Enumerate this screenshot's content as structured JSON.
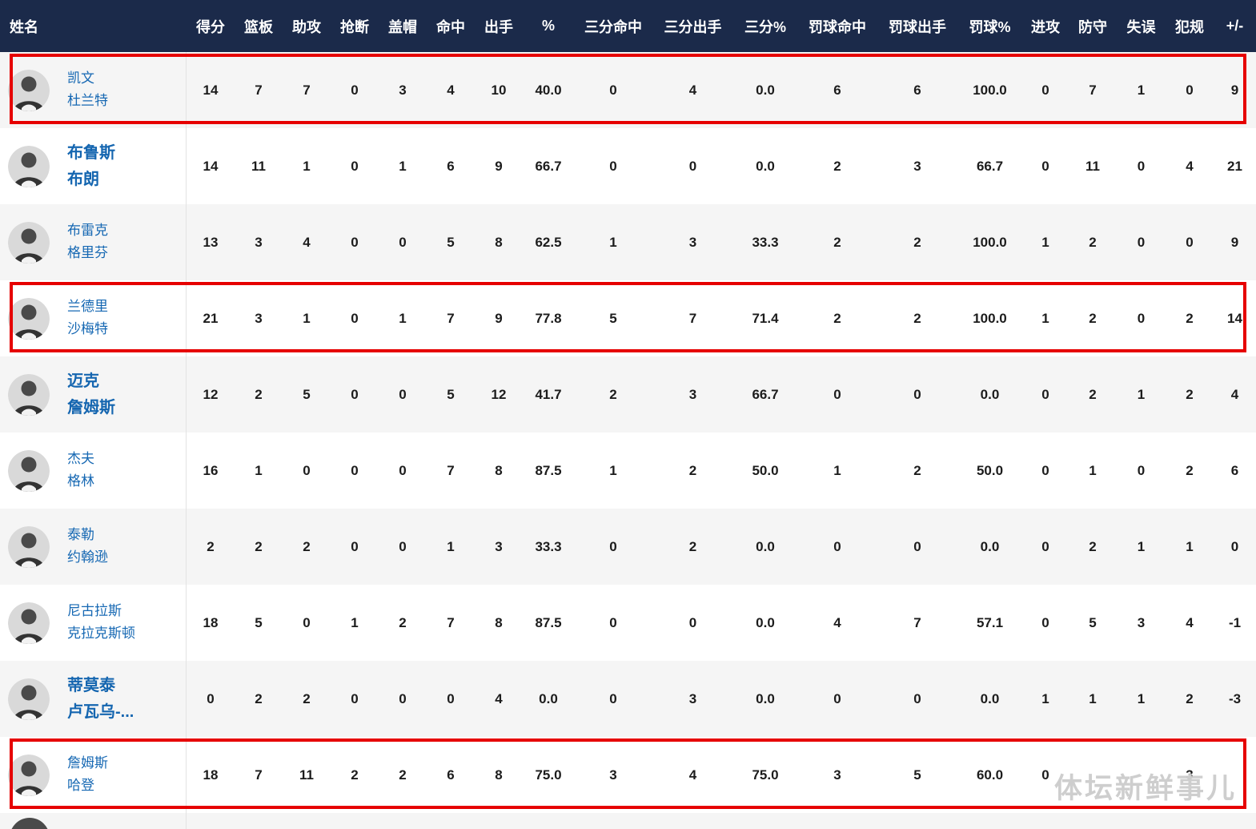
{
  "watermark": "体坛新鲜事儿",
  "table": {
    "columns": [
      "姓名",
      "得分",
      "篮板",
      "助攻",
      "抢断",
      "盖帽",
      "命中",
      "出手",
      "%",
      "三分命中",
      "三分出手",
      "三分%",
      "罚球命中",
      "罚球出手",
      "罚球%",
      "进攻",
      "防守",
      "失误",
      "犯规",
      "+/-"
    ],
    "rows": [
      {
        "name_line1": "凯文",
        "name_line2": "杜兰特",
        "bold": false,
        "highlighted": true,
        "stats": [
          "14",
          "7",
          "7",
          "0",
          "3",
          "4",
          "10",
          "40.0",
          "0",
          "4",
          "0.0",
          "6",
          "6",
          "100.0",
          "0",
          "7",
          "1",
          "0",
          "9"
        ]
      },
      {
        "name_line1": "布鲁斯",
        "name_line2": "布朗",
        "bold": true,
        "highlighted": false,
        "stats": [
          "14",
          "11",
          "1",
          "0",
          "1",
          "6",
          "9",
          "66.7",
          "0",
          "0",
          "0.0",
          "2",
          "3",
          "66.7",
          "0",
          "11",
          "0",
          "4",
          "21"
        ]
      },
      {
        "name_line1": "布雷克",
        "name_line2": "格里芬",
        "bold": false,
        "highlighted": false,
        "stats": [
          "13",
          "3",
          "4",
          "0",
          "0",
          "5",
          "8",
          "62.5",
          "1",
          "3",
          "33.3",
          "2",
          "2",
          "100.0",
          "1",
          "2",
          "0",
          "0",
          "9"
        ]
      },
      {
        "name_line1": "兰德里",
        "name_line2": "沙梅特",
        "bold": false,
        "highlighted": true,
        "stats": [
          "21",
          "3",
          "1",
          "0",
          "1",
          "7",
          "9",
          "77.8",
          "5",
          "7",
          "71.4",
          "2",
          "2",
          "100.0",
          "1",
          "2",
          "0",
          "2",
          "14"
        ]
      },
      {
        "name_line1": "迈克",
        "name_line2": "詹姆斯",
        "bold": true,
        "highlighted": false,
        "stats": [
          "12",
          "2",
          "5",
          "0",
          "0",
          "5",
          "12",
          "41.7",
          "2",
          "3",
          "66.7",
          "0",
          "0",
          "0.0",
          "0",
          "2",
          "1",
          "2",
          "4"
        ]
      },
      {
        "name_line1": "杰夫",
        "name_line2": "格林",
        "bold": false,
        "highlighted": false,
        "stats": [
          "16",
          "1",
          "0",
          "0",
          "0",
          "7",
          "8",
          "87.5",
          "1",
          "2",
          "50.0",
          "1",
          "2",
          "50.0",
          "0",
          "1",
          "0",
          "2",
          "6"
        ]
      },
      {
        "name_line1": "泰勒",
        "name_line2": "约翰逊",
        "bold": false,
        "highlighted": false,
        "stats": [
          "2",
          "2",
          "2",
          "0",
          "0",
          "1",
          "3",
          "33.3",
          "0",
          "2",
          "0.0",
          "0",
          "0",
          "0.0",
          "0",
          "2",
          "1",
          "1",
          "0"
        ]
      },
      {
        "name_line1": "尼古拉斯",
        "name_line2": "克拉克斯顿",
        "bold": false,
        "highlighted": false,
        "stats": [
          "18",
          "5",
          "0",
          "1",
          "2",
          "7",
          "8",
          "87.5",
          "0",
          "0",
          "0.0",
          "4",
          "7",
          "57.1",
          "0",
          "5",
          "3",
          "4",
          "-1"
        ]
      },
      {
        "name_line1": "蒂莫泰",
        "name_line2": "卢瓦乌-...",
        "bold": true,
        "highlighted": false,
        "stats": [
          "0",
          "2",
          "2",
          "0",
          "0",
          "0",
          "4",
          "0.0",
          "0",
          "3",
          "0.0",
          "0",
          "0",
          "0.0",
          "1",
          "1",
          "1",
          "2",
          "-3"
        ]
      },
      {
        "name_line1": "詹姆斯",
        "name_line2": "哈登",
        "bold": false,
        "highlighted": true,
        "stats": [
          "18",
          "7",
          "11",
          "2",
          "2",
          "6",
          "8",
          "75.0",
          "3",
          "4",
          "75.0",
          "3",
          "5",
          "60.0",
          "0",
          "",
          "",
          "3",
          ""
        ]
      }
    ]
  },
  "colors": {
    "header_bg": "#1b2a4a",
    "name_link": "#1668b3",
    "highlight_red": "#e60000",
    "odd_row_bg": "#f5f5f5"
  }
}
